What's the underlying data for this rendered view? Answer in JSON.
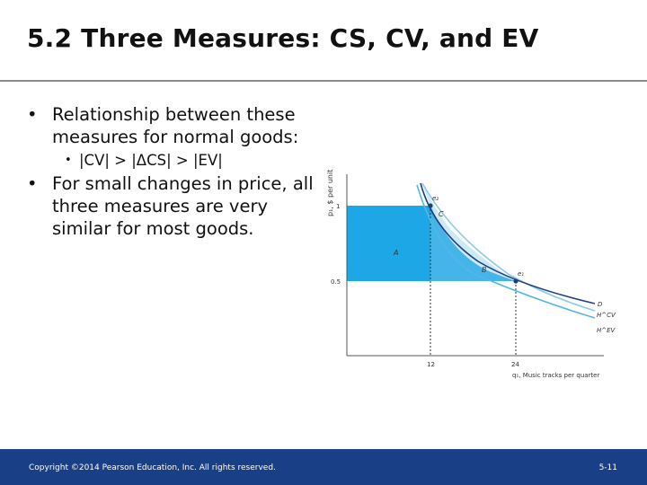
{
  "slide": {
    "title": "5.2 Three Measures: CS, CV, and EV",
    "bullets": [
      {
        "text": "Relationship between these measures for normal goods:"
      },
      {
        "sub": "|CV| > |ΔCS| > |EV|"
      },
      {
        "text": "For small changes in price, all three measures are very similar for most goods."
      }
    ],
    "footer": {
      "copyright": "Copyright ©2014 Pearson Education, Inc. All rights reserved.",
      "page": "5-11"
    }
  },
  "figure": {
    "y_axis_label": "p₁, $ per unit",
    "x_axis_label": "q₁, Music tracks per quarter",
    "y_ticks": [
      "1",
      "0.5"
    ],
    "x_ticks": [
      "12",
      "24"
    ],
    "region_labels": [
      "A",
      "B",
      "C"
    ],
    "point_labels": [
      "e₂",
      "e₁"
    ],
    "curve_labels": [
      "D",
      "H^CV",
      "H^EV"
    ],
    "colors": {
      "area_a": "#1ea7e6",
      "area_b": "#45b4e8",
      "area_c": "#cbe9f7",
      "curve_d": "#1d3f7a",
      "curve_cv": "#8ccbe8",
      "curve_ev": "#52b7e6"
    }
  }
}
